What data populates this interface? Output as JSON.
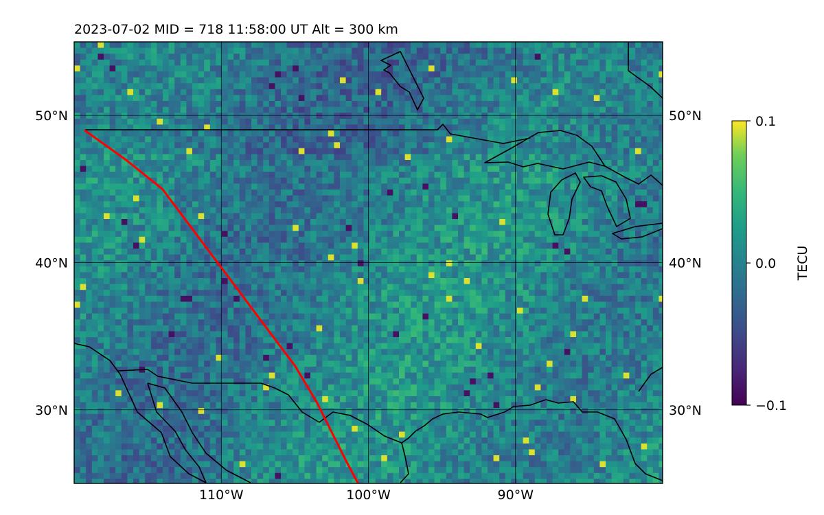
{
  "title": "2023-07-02  MID = 718    11:58:00  UT  Alt = 300 km",
  "map": {
    "lon_range": [
      -120,
      -80
    ],
    "lat_range": [
      25,
      55
    ],
    "x_ticks": [
      {
        "lon": -110,
        "label": "110°W"
      },
      {
        "lon": -100,
        "label": "100°W"
      },
      {
        "lon": -90,
        "label": "90°W"
      }
    ],
    "y_ticks": [
      {
        "lat": 50,
        "label": "50°N"
      },
      {
        "lat": 40,
        "label": "40°N"
      },
      {
        "lat": 30,
        "label": "30°N"
      }
    ],
    "gridlines": true,
    "grid_color": "#000000",
    "track_color": "#ff0000",
    "track": [
      [
        -119.3,
        49.0
      ],
      [
        -116.5,
        47.0
      ],
      [
        -114,
        45
      ],
      [
        -112.5,
        43
      ],
      [
        -111,
        41
      ],
      [
        -109.5,
        39
      ],
      [
        -108,
        37
      ],
      [
        -106.5,
        35
      ],
      [
        -105,
        33
      ],
      [
        -103.5,
        30.5
      ],
      [
        -102.5,
        28.5
      ],
      [
        -101.5,
        26.5
      ],
      [
        -100.7,
        25
      ]
    ],
    "coastline_color": "#000000"
  },
  "colorbar": {
    "label": "TECU",
    "vmin": -0.1,
    "vmax": 0.1,
    "ticks": [
      {
        "value": 0.1,
        "label": "0.1"
      },
      {
        "value": 0.0,
        "label": "0.0"
      },
      {
        "value": -0.1,
        "label": "−0.1"
      }
    ],
    "colormap": "viridis"
  }
}
